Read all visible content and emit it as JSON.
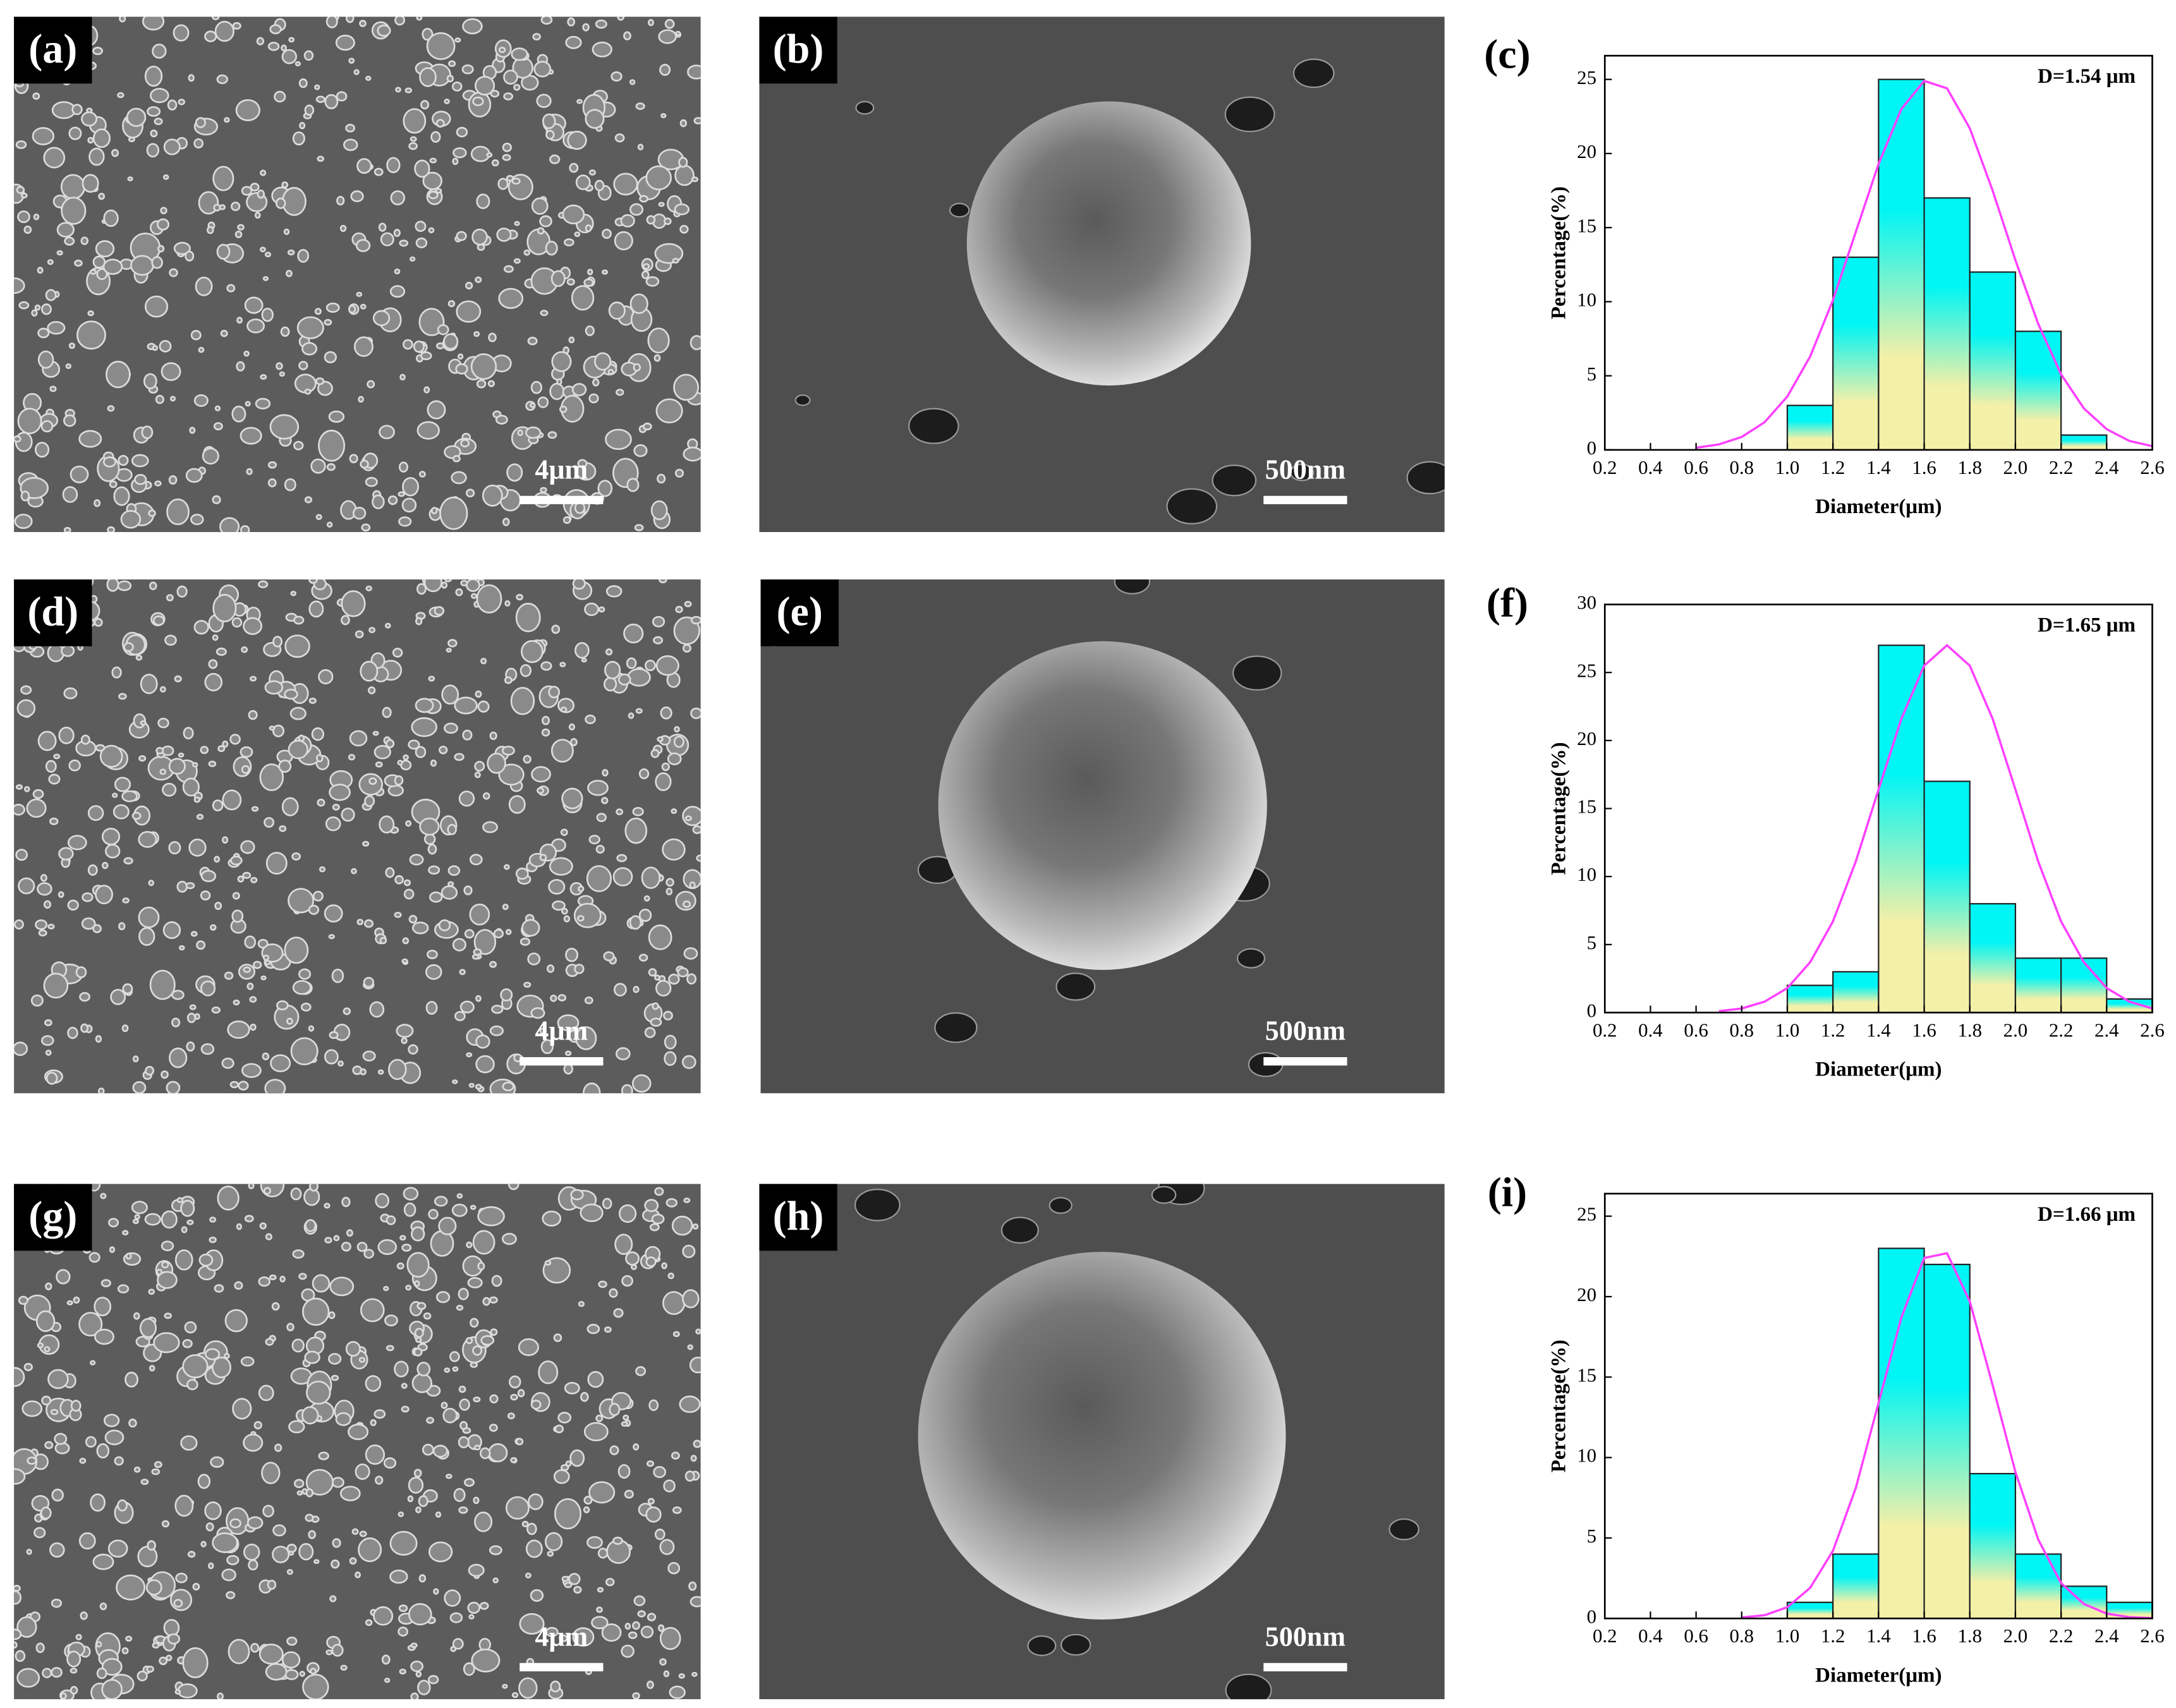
{
  "images": [
    {
      "label": "(a)",
      "scale_bar": "4μm"
    },
    {
      "label": "(b)",
      "scale_bar": "500nm"
    },
    {
      "label": "(d)",
      "scale_bar": "4μm"
    },
    {
      "label": "(e)",
      "scale_bar": "500nm"
    },
    {
      "label": "(g)",
      "scale_bar": "4μm"
    },
    {
      "label": "(h)",
      "scale_bar": "500nm"
    }
  ],
  "chart_data": [
    {
      "type": "histogram",
      "title": "(c)",
      "annotation": "D=1.54 μm",
      "xlabel": "Diameter(μm)",
      "ylabel": "Percentage(%)",
      "bins": [
        1.0,
        1.2,
        1.4,
        1.6,
        1.8,
        2.0,
        2.2,
        2.4
      ],
      "counts": [
        3,
        13,
        25,
        17,
        12,
        8,
        1
      ],
      "fit": {
        "x": [
          0.6,
          0.7,
          0.8,
          0.9,
          1.0,
          1.1,
          1.2,
          1.3,
          1.4,
          1.5,
          1.6,
          1.7,
          1.8,
          1.9,
          2.0,
          2.1,
          2.2,
          2.3,
          2.4,
          2.5,
          2.6
        ],
        "values": [
          0.14,
          0.37,
          0.87,
          1.86,
          3.6,
          6.3,
          10.1,
          14.7,
          19.3,
          23.0,
          24.9,
          24.4,
          21.7,
          17.5,
          12.8,
          8.5,
          5.1,
          2.8,
          1.4,
          0.6,
          0.25
        ]
      },
      "xlim": [
        0.2,
        2.6
      ],
      "ylim": [
        0,
        26.6
      ],
      "xticks": [
        0.2,
        0.4,
        0.6,
        0.8,
        {
          "value": 1.0,
          "label": "1.0"
        },
        1.2,
        1.4,
        1.6,
        1.8,
        {
          "value": 2.0,
          "label": "2.0"
        },
        2.2,
        2.4,
        2.6
      ],
      "yticks": [
        0,
        5,
        10,
        15,
        20,
        25
      ],
      "bar_colors": [
        "#00f5f5",
        "#f3f0a8"
      ],
      "fit_color": "#ff40ff"
    },
    {
      "type": "histogram",
      "title": "(f)",
      "annotation": "D=1.65 μm",
      "xlabel": "Diameter(μm)",
      "ylabel": "Percentage(%)",
      "bins": [
        1.0,
        1.2,
        1.4,
        1.6,
        1.8,
        2.0,
        2.2,
        2.4,
        2.6
      ],
      "counts": [
        2,
        3,
        27,
        17,
        8,
        4,
        4,
        1
      ],
      "fit": {
        "x": [
          0.7,
          0.8,
          0.9,
          1.0,
          1.1,
          1.2,
          1.3,
          1.4,
          1.5,
          1.6,
          1.7,
          1.8,
          1.9,
          2.0,
          2.1,
          2.2,
          2.3,
          2.4,
          2.5,
          2.6
        ],
        "values": [
          0.1,
          0.3,
          0.8,
          1.8,
          3.7,
          6.7,
          11.1,
          16.4,
          21.6,
          25.5,
          27,
          25.5,
          21.6,
          16.4,
          11.1,
          6.7,
          3.7,
          1.8,
          0.8,
          0.3
        ]
      },
      "xlim": [
        0.2,
        2.6
      ],
      "ylim": [
        0,
        30
      ],
      "xticks": [
        0.2,
        0.4,
        0.6,
        0.8,
        {
          "value": 1.0,
          "label": "1.0"
        },
        1.2,
        1.4,
        1.6,
        1.8,
        {
          "value": 2.0,
          "label": "2.0"
        },
        2.2,
        2.4,
        2.6
      ],
      "yticks": [
        0,
        5,
        10,
        15,
        20,
        25,
        30
      ],
      "bar_colors": [
        "#00f5f5",
        "#f3f0a8"
      ],
      "fit_color": "#ff40ff"
    },
    {
      "type": "histogram",
      "title": "(i)",
      "annotation": "D=1.66 μm",
      "xlabel": "Diameter(μm)",
      "ylabel": "Percentage(%)",
      "bins": [
        1.0,
        1.2,
        1.4,
        1.6,
        1.8,
        2.0,
        2.2,
        2.4,
        2.6
      ],
      "counts": [
        1,
        4,
        23,
        22,
        9,
        4,
        2,
        1
      ],
      "fit": {
        "x": [
          0.8,
          0.9,
          1.0,
          1.1,
          1.2,
          1.3,
          1.4,
          1.5,
          1.6,
          1.7,
          1.8,
          1.9,
          2.0,
          2.1,
          2.2,
          2.3,
          2.4,
          2.5,
          2.6
        ],
        "values": [
          0.06,
          0.2,
          0.7,
          1.9,
          4.2,
          8.1,
          13.4,
          18.7,
          22.4,
          22.7,
          19.7,
          14.5,
          9.1,
          4.9,
          2.2,
          0.9,
          0.3,
          0.08,
          0.02
        ]
      },
      "xlim": [
        0.2,
        2.6
      ],
      "ylim": [
        0,
        26.4
      ],
      "xticks": [
        0.2,
        0.4,
        0.6,
        0.8,
        {
          "value": 1.0,
          "label": "1.0"
        },
        1.2,
        1.4,
        1.6,
        1.8,
        {
          "value": 2.0,
          "label": "2.0"
        },
        2.2,
        2.4,
        2.6
      ],
      "yticks": [
        0,
        5,
        10,
        15,
        20,
        25
      ],
      "bar_colors": [
        "#00f5f5",
        "#f3f0a8"
      ],
      "fit_color": "#ff40ff"
    }
  ]
}
